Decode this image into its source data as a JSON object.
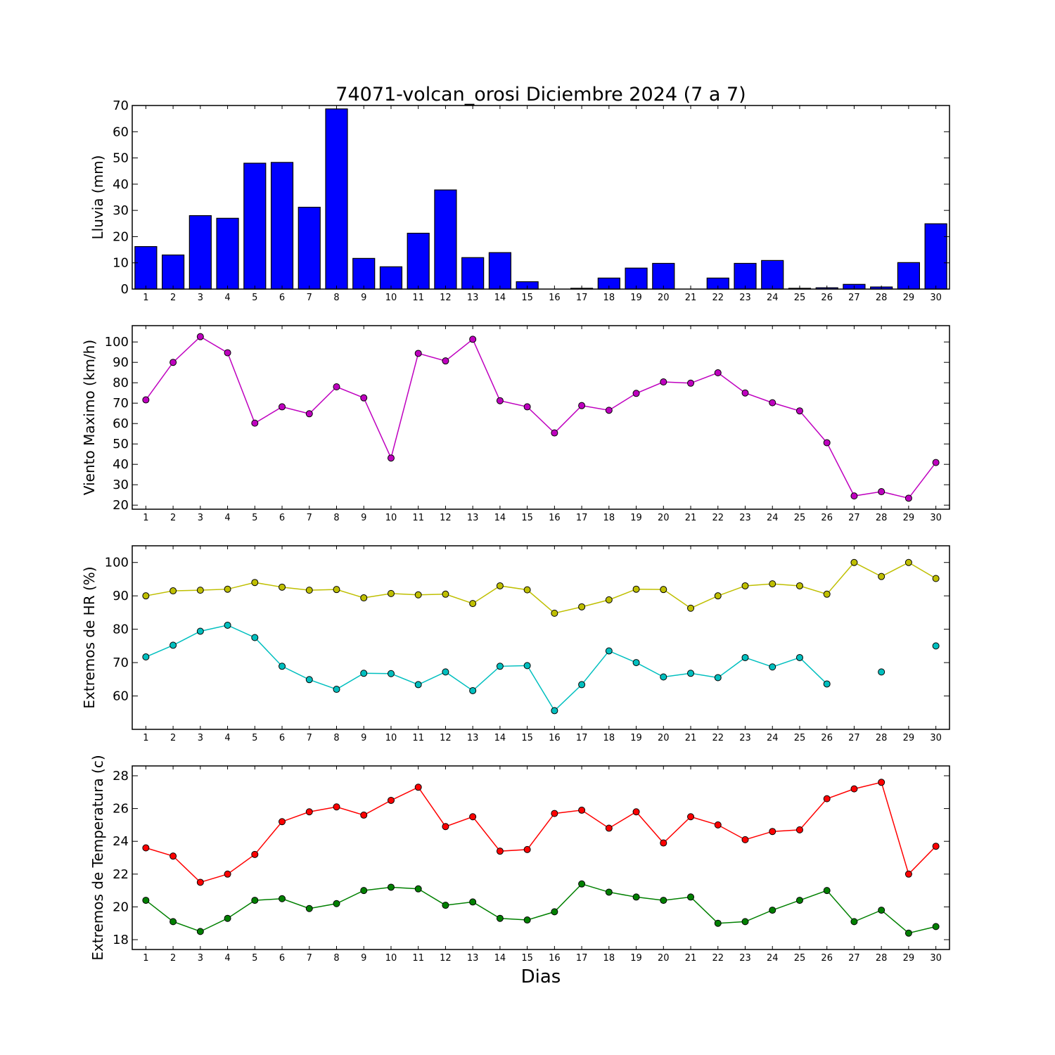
{
  "figure": {
    "title": "74071-volcan_orosi Diciembre 2024  (7 a 7)",
    "xlabel": "Dias"
  },
  "chart_data": [
    {
      "type": "bar",
      "ylabel": "Lluvia (mm)",
      "x": [
        1,
        2,
        3,
        4,
        5,
        6,
        7,
        8,
        9,
        10,
        11,
        12,
        13,
        14,
        15,
        16,
        17,
        18,
        19,
        20,
        21,
        22,
        23,
        24,
        25,
        26,
        27,
        28,
        29,
        30
      ],
      "ylim": [
        0,
        70
      ],
      "yticks": [
        0,
        10,
        20,
        30,
        40,
        50,
        60,
        70
      ],
      "series": [
        {
          "color": "#0000ff",
          "values": [
            16.2,
            13.0,
            28.0,
            27.0,
            48.0,
            48.3,
            31.2,
            68.7,
            11.7,
            8.5,
            21.3,
            37.8,
            12.0,
            13.9,
            2.8,
            0,
            0.3,
            4.2,
            8.0,
            9.8,
            0,
            4.2,
            9.8,
            10.9,
            0.3,
            0.5,
            1.8,
            0.8,
            10.1,
            24.9
          ]
        }
      ]
    },
    {
      "type": "line",
      "ylabel": "Viento Maximo (km/h)",
      "x": [
        1,
        2,
        3,
        4,
        5,
        6,
        7,
        8,
        9,
        10,
        11,
        12,
        13,
        14,
        15,
        16,
        17,
        18,
        19,
        20,
        21,
        22,
        23,
        24,
        25,
        26,
        27,
        28,
        29,
        30
      ],
      "ylim": [
        18,
        108
      ],
      "yticks": [
        20,
        30,
        40,
        50,
        60,
        70,
        80,
        90,
        100
      ],
      "series": [
        {
          "color": "#bf00bf",
          "values": [
            71.6,
            90.0,
            102.6,
            94.7,
            60.2,
            68.2,
            64.8,
            78.0,
            72.6,
            43.1,
            94.4,
            90.7,
            101.3,
            71.2,
            68.2,
            55.4,
            68.8,
            66.5,
            74.8,
            80.4,
            79.8,
            84.9,
            75.0,
            70.2,
            66.2,
            50.6,
            24.5,
            26.6,
            23.4,
            40.9
          ]
        }
      ]
    },
    {
      "type": "line",
      "ylabel": "Extremos de HR (%)",
      "x": [
        1,
        2,
        3,
        4,
        5,
        6,
        7,
        8,
        9,
        10,
        11,
        12,
        13,
        14,
        15,
        16,
        17,
        18,
        19,
        20,
        21,
        22,
        23,
        24,
        25,
        26,
        27,
        28,
        29,
        30
      ],
      "ylim": [
        50,
        105
      ],
      "yticks": [
        60,
        70,
        80,
        90,
        100
      ],
      "series": [
        {
          "color": "#bfbf00",
          "values": [
            90.0,
            91.5,
            91.7,
            92.0,
            94.0,
            92.6,
            91.7,
            91.9,
            89.4,
            90.7,
            90.3,
            90.5,
            87.7,
            93.0,
            91.8,
            84.8,
            86.7,
            88.8,
            92.0,
            91.9,
            86.3,
            90.0,
            93.0,
            93.6,
            93.0,
            90.5,
            100.0,
            95.8,
            100.0,
            95.2
          ]
        },
        {
          "color": "#00bfbf",
          "values": [
            71.7,
            75.2,
            79.4,
            81.2,
            77.5,
            68.9,
            64.9,
            62.0,
            66.8,
            66.7,
            63.4,
            67.2,
            61.6,
            68.9,
            69.1,
            55.6,
            63.4,
            73.5,
            70.0,
            65.7,
            66.8,
            65.5,
            71.5,
            68.7,
            71.5,
            63.6,
            null,
            67.2,
            null,
            75.0
          ]
        }
      ]
    },
    {
      "type": "line",
      "ylabel": "Extremos de Temperatura (c)",
      "x": [
        1,
        2,
        3,
        4,
        5,
        6,
        7,
        8,
        9,
        10,
        11,
        12,
        13,
        14,
        15,
        16,
        17,
        18,
        19,
        20,
        21,
        22,
        23,
        24,
        25,
        26,
        27,
        28,
        29,
        30
      ],
      "ylim": [
        17.4,
        28.6
      ],
      "yticks": [
        18,
        20,
        22,
        24,
        26,
        28
      ],
      "series": [
        {
          "color": "#ff0000",
          "values": [
            23.6,
            23.1,
            21.5,
            22.0,
            23.2,
            25.2,
            25.8,
            26.1,
            25.6,
            26.5,
            27.3,
            24.9,
            25.5,
            23.4,
            23.5,
            25.7,
            25.9,
            24.8,
            25.8,
            23.9,
            25.5,
            25.0,
            24.1,
            24.6,
            24.7,
            26.6,
            27.2,
            27.6,
            22.0,
            23.7
          ]
        },
        {
          "color": "#008000",
          "values": [
            20.4,
            19.1,
            18.5,
            19.3,
            20.4,
            20.5,
            19.9,
            20.2,
            21.0,
            21.2,
            21.1,
            20.1,
            20.3,
            19.3,
            19.2,
            19.7,
            21.4,
            20.9,
            20.6,
            20.4,
            20.6,
            19.0,
            19.1,
            19.8,
            20.4,
            21.0,
            19.1,
            19.8,
            18.4,
            18.8
          ]
        }
      ]
    }
  ]
}
